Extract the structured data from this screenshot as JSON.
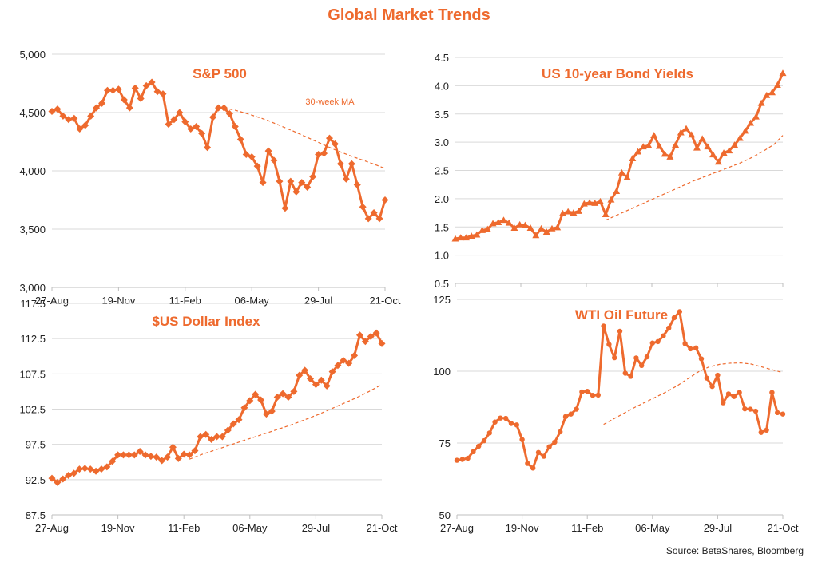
{
  "title": "Global Market Trends",
  "source": "Source: BetaShares, Bloomberg",
  "ma_label": "30-week MA",
  "colors": {
    "series": "#ee6a2e",
    "grid": "#d9d9d9",
    "axis": "#bfbfbf"
  },
  "chart_data": [
    {
      "id": "sp500",
      "type": "line",
      "title": "S&P 500",
      "marker": "diamond",
      "ylim": [
        3000,
        5000
      ],
      "yticks": [
        3000,
        3500,
        4000,
        4500,
        5000
      ],
      "ytick_labels": [
        "3,000",
        "3,500",
        "4,000",
        "4,500",
        "5,000"
      ],
      "xtick_labels": [
        "27-Aug",
        "19-Nov",
        "11-Feb",
        "06-May",
        "29-Jul",
        "21-Oct"
      ],
      "series": [
        {
          "label": "weekly",
          "values": [
            4510,
            4530,
            4470,
            4440,
            4450,
            4360,
            4390,
            4470,
            4540,
            4580,
            4690,
            4690,
            4700,
            4610,
            4540,
            4710,
            4620,
            4730,
            4760,
            4680,
            4660,
            4400,
            4440,
            4500,
            4420,
            4360,
            4380,
            4320,
            4200,
            4460,
            4540,
            4540,
            4490,
            4380,
            4270,
            4140,
            4120,
            4040,
            3900,
            4170,
            4090,
            3910,
            3680,
            3910,
            3820,
            3900,
            3860,
            3950,
            4140,
            4150,
            4280,
            4230,
            4060,
            3930,
            4060,
            3880,
            3690,
            3590,
            3640,
            3590,
            3750
          ]
        },
        {
          "label": "30-week MA",
          "values": [
            4550,
            4535,
            4520,
            4500,
            4478,
            4455,
            4430,
            4400,
            4370,
            4340,
            4308,
            4276,
            4244,
            4212,
            4180,
            4152,
            4125,
            4100,
            4075,
            4048,
            4020
          ]
        }
      ],
      "ma_start": 30
    },
    {
      "id": "us10y",
      "type": "line",
      "title": "US  10-year Bond Yields",
      "marker": "triangle",
      "ylim": [
        0.5,
        4.5
      ],
      "yticks": [
        0.5,
        1.0,
        1.5,
        2.0,
        2.5,
        3.0,
        3.5,
        4.0,
        4.5
      ],
      "ytick_labels": [
        "0.5",
        "1.0",
        "1.5",
        "2.0",
        "2.5",
        "3.0",
        "3.5",
        "4.0",
        "4.5"
      ],
      "xtick_labels": [],
      "series": [
        {
          "label": "weekly",
          "values": [
            1.29,
            1.31,
            1.31,
            1.34,
            1.36,
            1.44,
            1.46,
            1.56,
            1.58,
            1.62,
            1.57,
            1.48,
            1.54,
            1.53,
            1.48,
            1.35,
            1.47,
            1.41,
            1.47,
            1.49,
            1.74,
            1.77,
            1.75,
            1.78,
            1.91,
            1.93,
            1.92,
            1.95,
            1.72,
            1.98,
            2.13,
            2.46,
            2.38,
            2.71,
            2.83,
            2.92,
            2.94,
            3.12,
            2.93,
            2.79,
            2.74,
            2.95,
            3.17,
            3.24,
            3.13,
            2.9,
            3.06,
            2.92,
            2.78,
            2.65,
            2.81,
            2.85,
            2.95,
            3.07,
            3.2,
            3.34,
            3.45,
            3.69,
            3.83,
            3.88,
            4.01,
            4.22
          ]
        },
        {
          "label": "30-week MA",
          "values": [
            1.62,
            1.69,
            1.76,
            1.83,
            1.9,
            1.97,
            2.04,
            2.11,
            2.18,
            2.25,
            2.32,
            2.38,
            2.44,
            2.5,
            2.56,
            2.62,
            2.69,
            2.77,
            2.86,
            2.96,
            3.12
          ]
        }
      ],
      "ma_start": 28
    },
    {
      "id": "usd",
      "type": "line",
      "title": "$US Dollar Index",
      "marker": "diamond",
      "ylim": [
        87.5,
        117.5
      ],
      "yticks": [
        87.5,
        92.5,
        97.5,
        102.5,
        107.5,
        112.5,
        117.5
      ],
      "ytick_labels": [
        "87.5",
        "92.5",
        "97.5",
        "102.5",
        "107.5",
        "112.5",
        "117.5"
      ],
      "xtick_labels": [
        "27-Aug",
        "19-Nov",
        "11-Feb",
        "06-May",
        "29-Jul",
        "21-Oct"
      ],
      "series": [
        {
          "label": "weekly",
          "values": [
            92.7,
            92.1,
            92.6,
            93.1,
            93.4,
            94.0,
            94.1,
            94.0,
            93.7,
            94.0,
            94.3,
            95.1,
            96.0,
            96.0,
            96.0,
            96.0,
            96.5,
            96.0,
            95.8,
            95.7,
            95.2,
            95.7,
            97.1,
            95.5,
            96.1,
            96.0,
            96.6,
            98.6,
            98.9,
            98.2,
            98.6,
            98.6,
            99.5,
            100.4,
            101.0,
            102.7,
            103.7,
            104.6,
            103.8,
            101.8,
            102.2,
            104.2,
            104.7,
            104.2,
            105.0,
            107.3,
            108.0,
            106.8,
            106.0,
            106.6,
            105.8,
            107.8,
            108.7,
            109.4,
            109.0,
            110.1,
            113.0,
            112.1,
            112.8,
            113.3,
            111.8
          ]
        },
        {
          "label": "30-week MA",
          "values": [
            95.4,
            96.1,
            96.7,
            97.3,
            97.9,
            98.5,
            99.1,
            99.7,
            100.3,
            101.0,
            101.7,
            102.5,
            103.3,
            104.1,
            105.0,
            106.0
          ]
        }
      ],
      "ma_start": 25
    },
    {
      "id": "wti",
      "type": "line",
      "title": "WTI Oil Future",
      "marker": "circle",
      "ylim": [
        50,
        125
      ],
      "yticks": [
        50,
        75,
        100,
        125
      ],
      "ytick_labels": [
        "50",
        "75",
        "100",
        "125"
      ],
      "xtick_labels": [
        "27-Aug",
        "19-Nov",
        "11-Feb",
        "06-May",
        "29-Jul",
        "21-Oct"
      ],
      "series": [
        {
          "label": "weekly",
          "values": [
            69.0,
            69.3,
            69.7,
            72.0,
            73.9,
            75.8,
            78.5,
            82.3,
            83.7,
            83.6,
            81.8,
            81.3,
            76.2,
            67.9,
            66.3,
            71.7,
            70.4,
            73.7,
            75.3,
            78.9,
            84.2,
            85.1,
            86.8,
            92.8,
            93.0,
            91.6,
            91.7,
            115.7,
            109.3,
            104.7,
            113.9,
            99.3,
            98.2,
            104.6,
            102.0,
            105.0,
            109.8,
            110.3,
            112.3,
            115.0,
            118.6,
            120.7,
            109.6,
            107.8,
            108.1,
            104.3,
            97.6,
            94.7,
            98.6,
            89.0,
            92.1,
            91.2,
            92.6,
            86.9,
            86.8,
            86.1,
            78.7,
            79.5,
            92.6,
            85.6,
            85.1
          ]
        },
        {
          "label": "30-week MA",
          "values": [
            81.5,
            83.5,
            85.5,
            87.5,
            89.3,
            91.1,
            92.9,
            95.0,
            97.4,
            99.8,
            101.5,
            102.4,
            102.8,
            102.9,
            102.5,
            101.5,
            100.5,
            99.5
          ]
        }
      ],
      "ma_start": 27
    }
  ]
}
